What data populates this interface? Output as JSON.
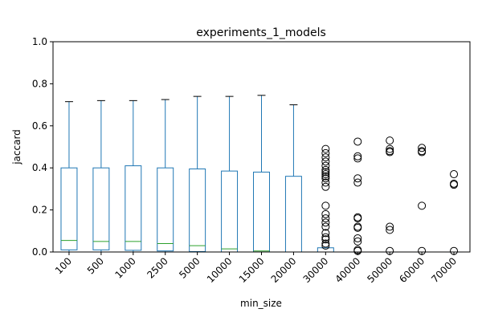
{
  "chart_data": {
    "type": "box",
    "title": "experiments_1_models",
    "xlabel": "min_size",
    "ylabel": "jaccard",
    "ylim": [
      0,
      1
    ],
    "yticks": [
      "0.0",
      "0.2",
      "0.4",
      "0.6",
      "0.8",
      "1.0"
    ],
    "categories": [
      "100",
      "500",
      "1000",
      "2500",
      "5000",
      "10000",
      "15000",
      "20000",
      "30000",
      "40000",
      "50000",
      "60000",
      "70000"
    ],
    "boxes": [
      {
        "whislo": 0.0,
        "q1": 0.01,
        "med": 0.055,
        "q3": 0.4,
        "whishi": 0.715,
        "fliers": []
      },
      {
        "whislo": 0.0,
        "q1": 0.01,
        "med": 0.05,
        "q3": 0.4,
        "whishi": 0.72,
        "fliers": []
      },
      {
        "whislo": 0.0,
        "q1": 0.008,
        "med": 0.05,
        "q3": 0.41,
        "whishi": 0.72,
        "fliers": []
      },
      {
        "whislo": 0.0,
        "q1": 0.005,
        "med": 0.04,
        "q3": 0.4,
        "whishi": 0.725,
        "fliers": []
      },
      {
        "whislo": 0.0,
        "q1": 0.002,
        "med": 0.03,
        "q3": 0.395,
        "whishi": 0.74,
        "fliers": []
      },
      {
        "whislo": 0.0,
        "q1": 0.0,
        "med": 0.015,
        "q3": 0.385,
        "whishi": 0.74,
        "fliers": []
      },
      {
        "whislo": 0.0,
        "q1": 0.0,
        "med": 0.005,
        "q3": 0.38,
        "whishi": 0.745,
        "fliers": []
      },
      {
        "whislo": 0.0,
        "q1": 0.0,
        "med": 0.0,
        "q3": 0.36,
        "whishi": 0.7,
        "fliers": []
      },
      {
        "whislo": 0.0,
        "q1": 0.0,
        "med": 0.0,
        "q3": 0.02,
        "whishi": 0.02,
        "fliers": [
          0.49,
          0.47,
          0.45,
          0.43,
          0.41,
          0.39,
          0.38,
          0.37,
          0.36,
          0.35,
          0.33,
          0.31,
          0.22,
          0.18,
          0.16,
          0.14,
          0.12,
          0.09,
          0.07,
          0.06,
          0.04,
          0.03
        ]
      },
      {
        "whislo": 0.0,
        "q1": 0.0,
        "med": 0.0,
        "q3": 0.0,
        "whishi": 0.0,
        "fliers": [
          0.525,
          0.455,
          0.445,
          0.35,
          0.33,
          0.165,
          0.16,
          0.12,
          0.115,
          0.065,
          0.05,
          0.01,
          0.005
        ]
      },
      {
        "whislo": 0.0,
        "q1": 0.0,
        "med": 0.0,
        "q3": 0.0,
        "whishi": 0.0,
        "fliers": [
          0.53,
          0.49,
          0.48,
          0.475,
          0.12,
          0.105,
          0.005
        ]
      },
      {
        "whislo": 0.0,
        "q1": 0.0,
        "med": 0.0,
        "q3": 0.0,
        "whishi": 0.0,
        "fliers": [
          0.495,
          0.48,
          0.475,
          0.22,
          0.005
        ]
      },
      {
        "whislo": 0.0,
        "q1": 0.0,
        "med": 0.0,
        "q3": 0.0,
        "whishi": 0.0,
        "fliers": [
          0.37,
          0.325,
          0.32,
          0.005
        ]
      }
    ],
    "grid": false,
    "colors": {
      "box": "#1f77b4",
      "median": "#2ca02c",
      "whisker": "#1f77b4",
      "cap": "#000000",
      "flier": "#000000"
    }
  }
}
